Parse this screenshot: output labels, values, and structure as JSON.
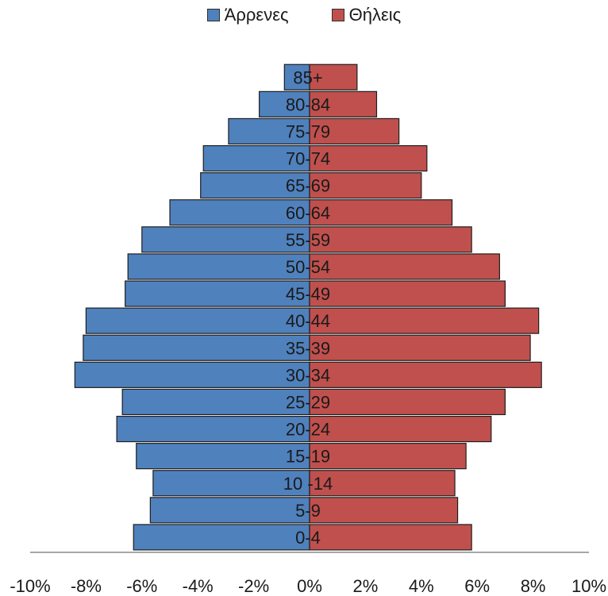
{
  "colors": {
    "male": "#4f81bd",
    "female": "#c0504d",
    "border": "#1e1e1e",
    "axis": "#888888"
  },
  "chart_data": {
    "type": "bar",
    "orientation": "horizontal",
    "style": "population-pyramid",
    "categories": [
      "0-4",
      "5-9",
      "10 -14",
      "15-19",
      "20-24",
      "25-29",
      "30-34",
      "35-39",
      "40-44",
      "45-49",
      "50-54",
      "55-59",
      "60-64",
      "65-69",
      "70-74",
      "75-79",
      "80-84",
      "85+"
    ],
    "series": [
      {
        "name": "Άρρενες",
        "color": "#4f81bd",
        "values": [
          -6.3,
          -5.7,
          -5.6,
          -6.2,
          -6.9,
          -6.7,
          -8.4,
          -8.1,
          -8.0,
          -6.6,
          -6.5,
          -6.0,
          -5.0,
          -3.9,
          -3.8,
          -2.9,
          -1.8,
          -0.9
        ]
      },
      {
        "name": "Θήλεις",
        "color": "#c0504d",
        "values": [
          5.8,
          5.3,
          5.2,
          5.6,
          6.5,
          7.0,
          8.3,
          7.9,
          8.2,
          7.0,
          6.8,
          5.8,
          5.1,
          4.0,
          4.2,
          3.2,
          2.4,
          1.7
        ]
      }
    ],
    "xlim": [
      -10,
      10
    ],
    "xticks": [
      -10,
      -8,
      -6,
      -4,
      -2,
      0,
      2,
      4,
      6,
      8,
      10
    ],
    "xtick_labels": [
      "-10%",
      "-8%",
      "-6%",
      "-4%",
      "-2%",
      "0%",
      "2%",
      "4%",
      "6%",
      "8%",
      "10%"
    ],
    "legend_position": "top",
    "grid": false,
    "title": "",
    "xlabel": "",
    "ylabel": ""
  }
}
